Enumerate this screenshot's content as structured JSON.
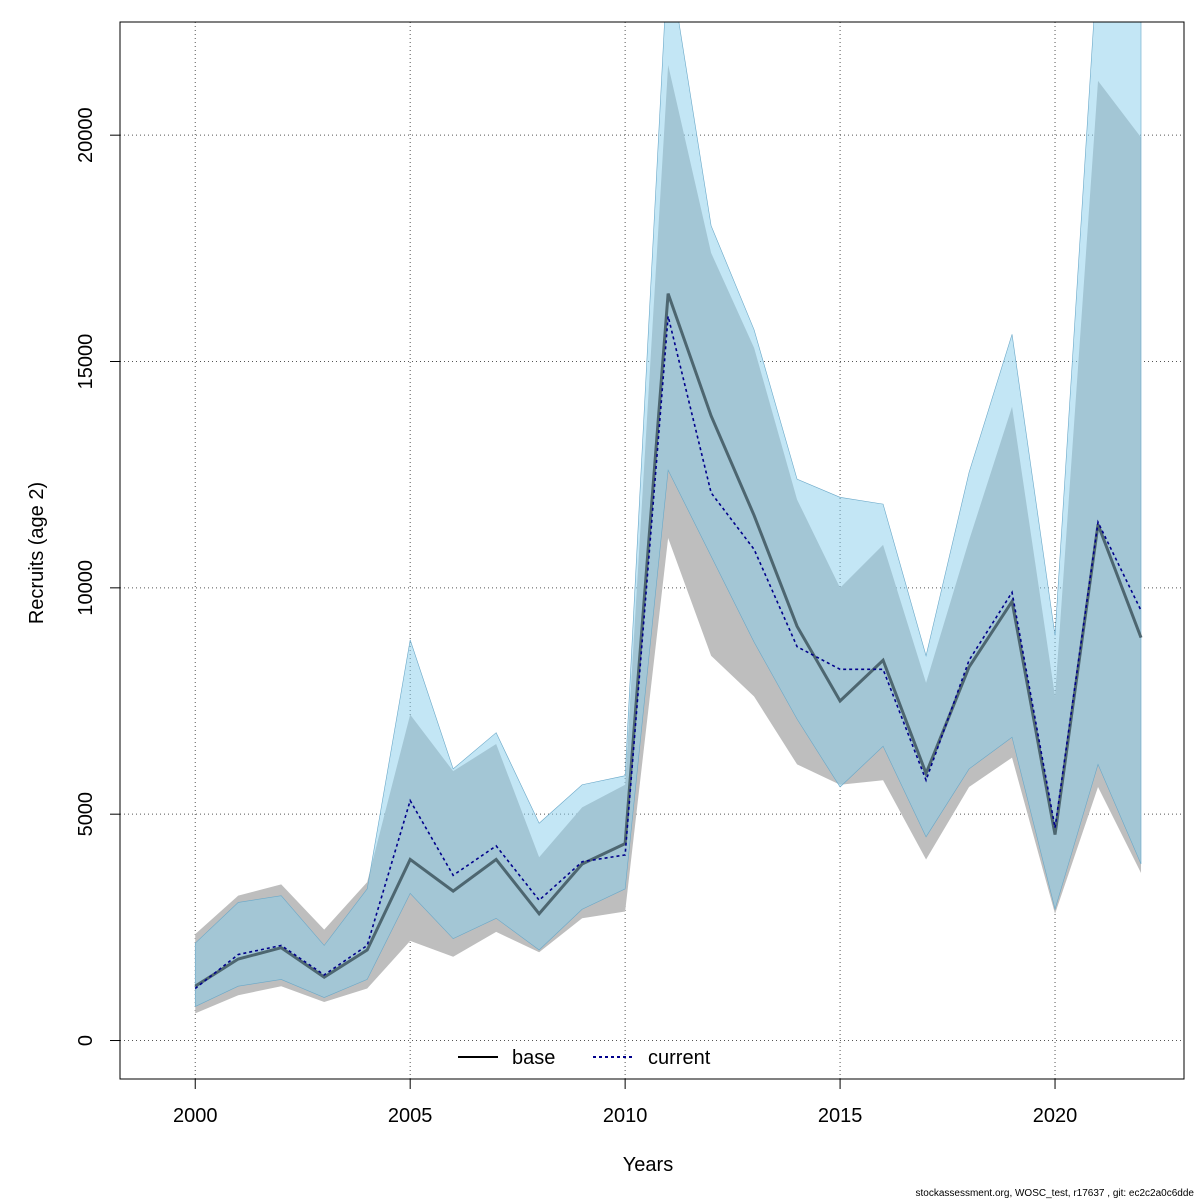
{
  "chart_data": {
    "type": "line",
    "xlabel": "Years",
    "ylabel": "Recruits (age 2)",
    "xlim": [
      1998.25,
      2023
    ],
    "ylim": [
      -850,
      22500
    ],
    "x_ticks": [
      2000,
      2005,
      2010,
      2015,
      2020
    ],
    "y_ticks": [
      0,
      5000,
      10000,
      15000,
      20000
    ],
    "grid": true,
    "legend_position": "bottom-center",
    "footer": "stockassessment.org, WOSC_test, r17637 , git: ec2c2a0c6dde",
    "colors": {
      "base_band": "#bebebe",
      "base_line": "#000000",
      "current_band": "#87ceeb",
      "current_line": "#00008b"
    },
    "x": [
      2000,
      2001,
      2002,
      2003,
      2004,
      2005,
      2006,
      2007,
      2008,
      2009,
      2010,
      2011,
      2012,
      2013,
      2014,
      2015,
      2016,
      2017,
      2018,
      2019,
      2020,
      2021,
      2022
    ],
    "series": [
      {
        "name": "base",
        "line_style": "solid",
        "values": [
          1200,
          1800,
          2050,
          1400,
          2000,
          4000,
          3300,
          4000,
          2800,
          3900,
          4350,
          16500,
          13800,
          11600,
          9150,
          7500,
          8400,
          5900,
          8250,
          9700,
          4550,
          11400,
          8900
        ],
        "lower": [
          600,
          1000,
          1200,
          850,
          1150,
          2200,
          1850,
          2400,
          1950,
          2700,
          2850,
          11100,
          8500,
          7600,
          6100,
          5650,
          5750,
          4000,
          5600,
          6250,
          2800,
          5600,
          3700
        ],
        "upper": [
          2350,
          3200,
          3450,
          2450,
          3500,
          7200,
          5950,
          6550,
          4050,
          5150,
          5650,
          21550,
          17400,
          15300,
          11950,
          10000,
          10950,
          7900,
          11050,
          14000,
          7600,
          21200,
          19950
        ]
      },
      {
        "name": "current",
        "line_style": "dotted",
        "values": [
          1150,
          1900,
          2100,
          1450,
          2100,
          5300,
          3650,
          4300,
          3100,
          3950,
          4100,
          16000,
          12100,
          10850,
          8700,
          8200,
          8200,
          5750,
          8400,
          9900,
          4700,
          11450,
          9500
        ],
        "lower": [
          750,
          1200,
          1350,
          950,
          1350,
          3250,
          2250,
          2700,
          2000,
          2900,
          3350,
          12600,
          10700,
          8800,
          7100,
          5600,
          6500,
          4500,
          6000,
          6700,
          2900,
          6100,
          3900
        ],
        "upper": [
          2150,
          3050,
          3200,
          2100,
          3350,
          8850,
          6000,
          6800,
          4800,
          5650,
          5850,
          24000,
          18000,
          15700,
          12400,
          12000,
          11850,
          8500,
          12550,
          15600,
          8950,
          24000,
          24000
        ]
      }
    ]
  }
}
